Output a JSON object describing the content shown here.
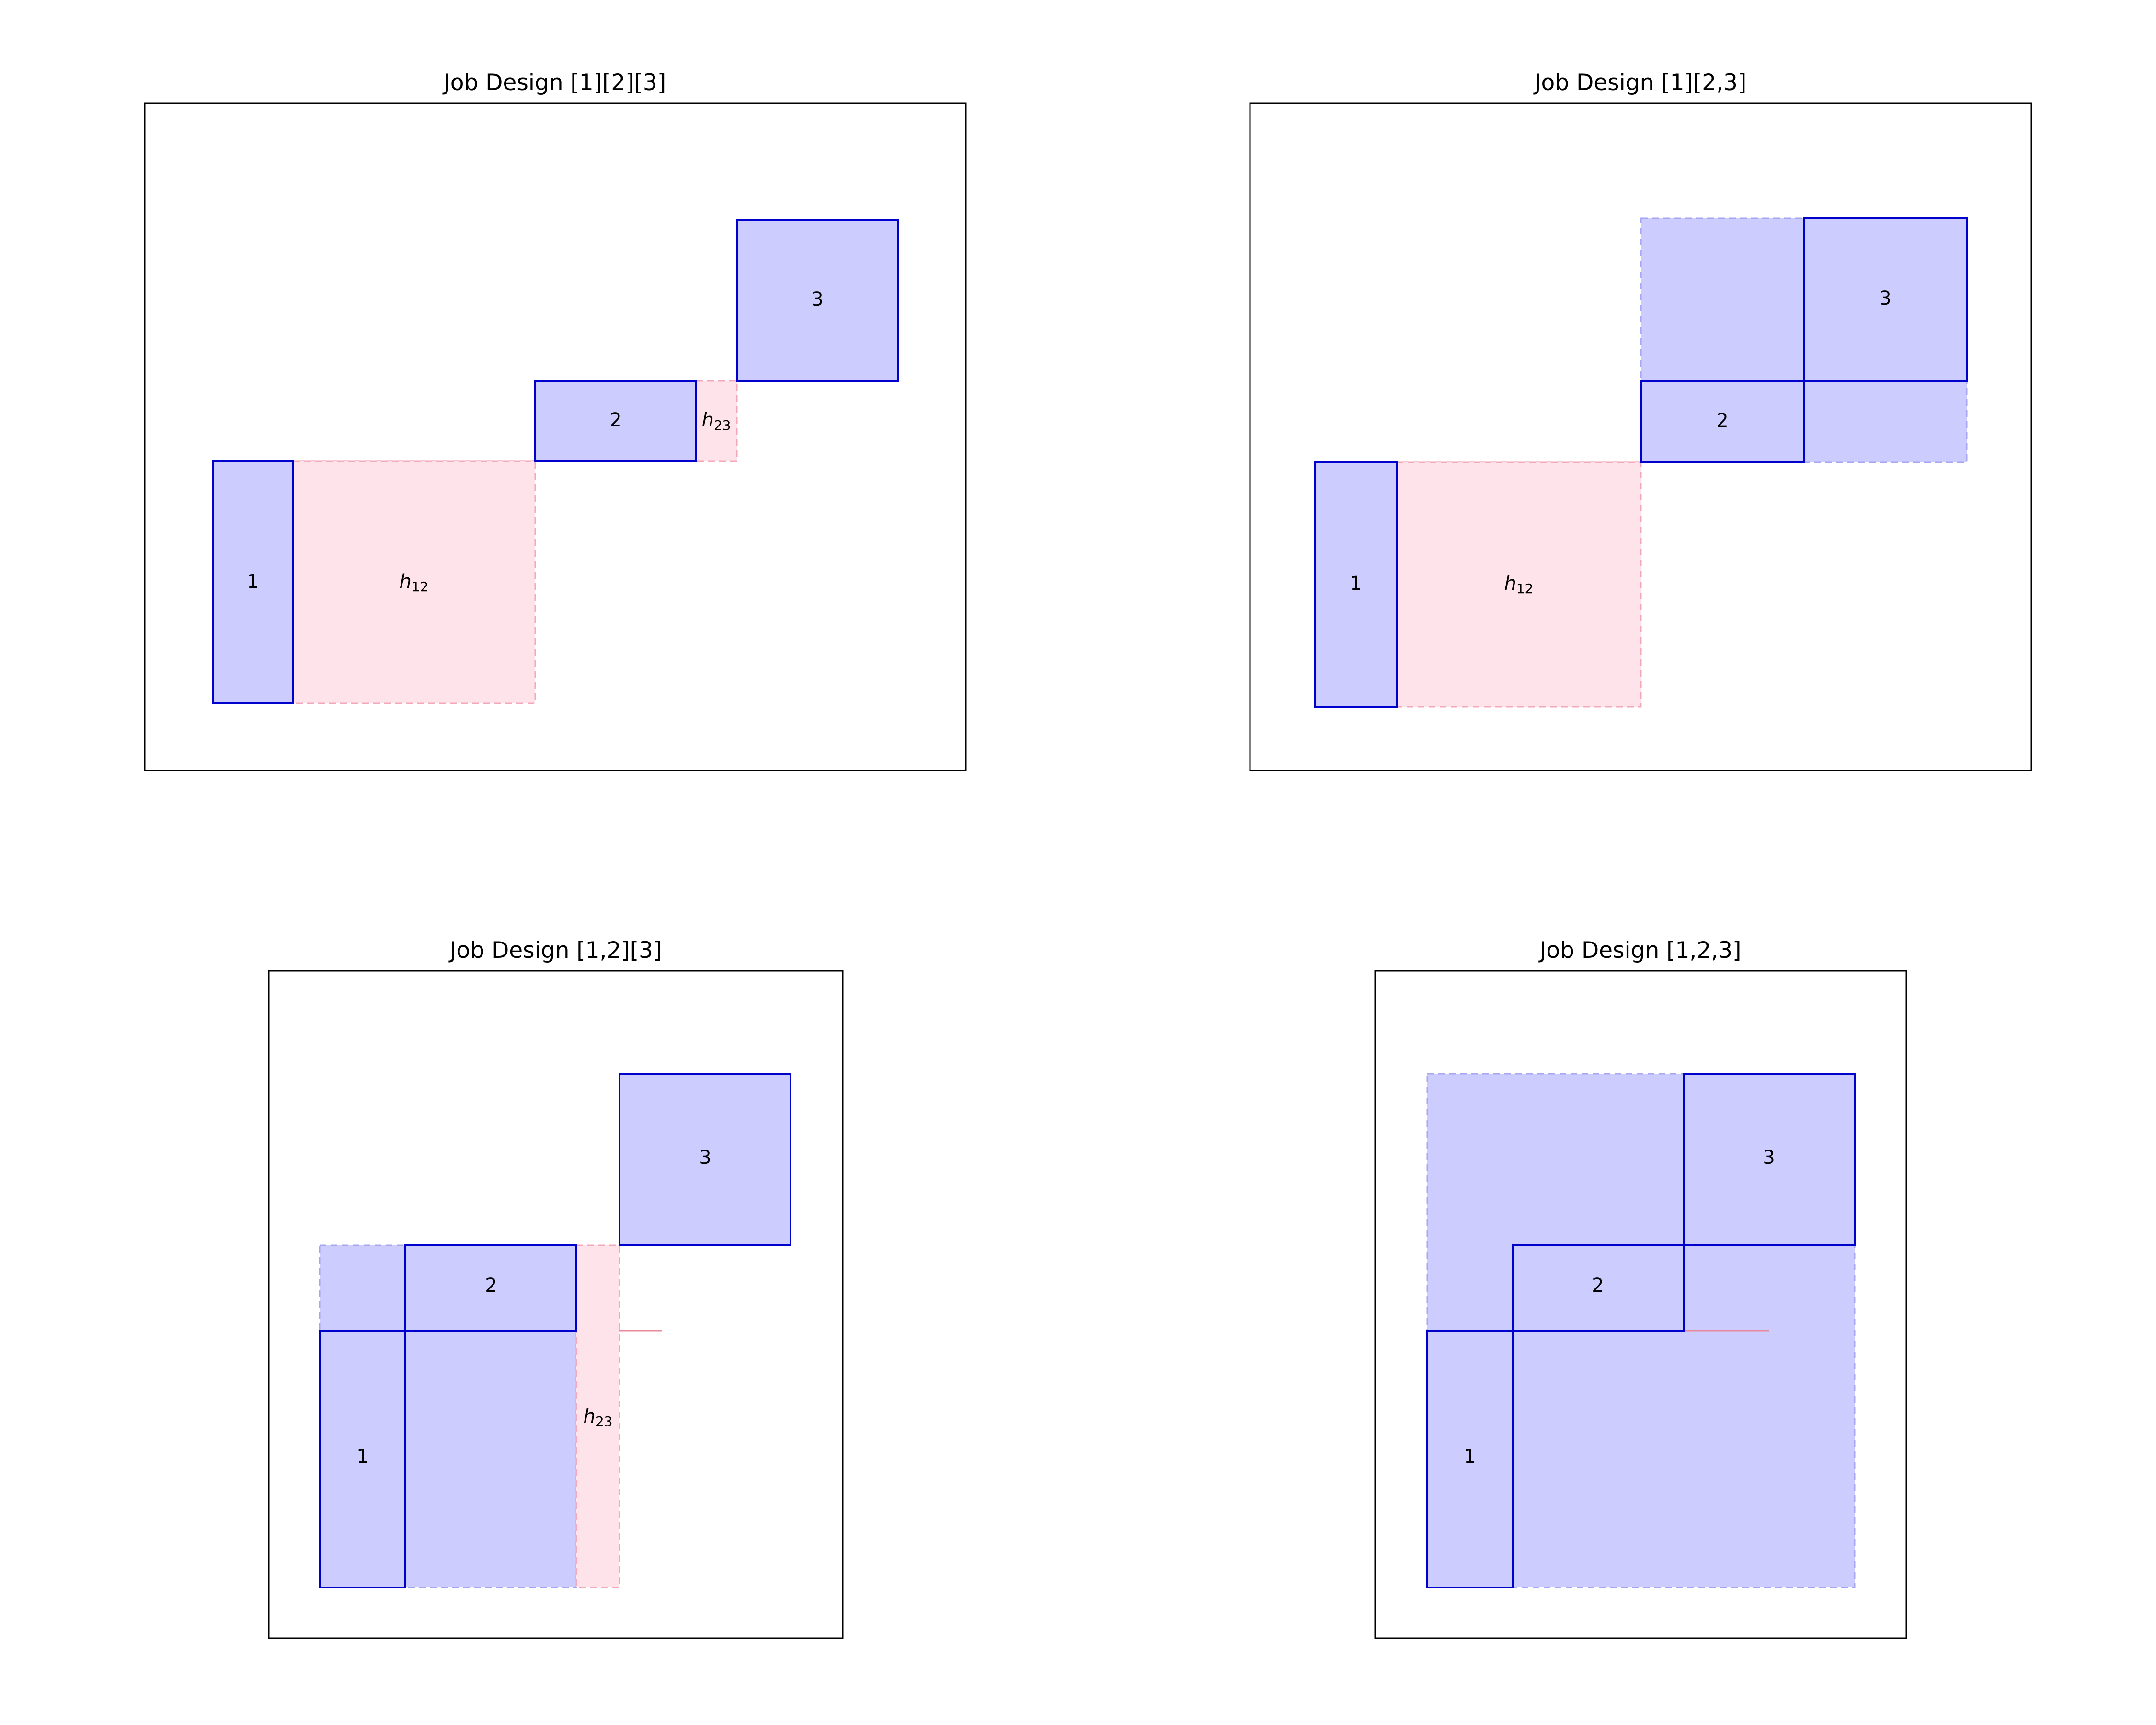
{
  "panels": [
    {
      "title": "Job Design [1][2][3]",
      "jobs": [
        {
          "label": "1"
        },
        {
          "label": "2"
        },
        {
          "label": "3"
        }
      ],
      "handoffs": [
        {
          "letter": "h",
          "subscript": "12"
        },
        {
          "letter": "h",
          "subscript": "23"
        }
      ]
    },
    {
      "title": "Job Design [1][2,3]",
      "jobs": [
        {
          "label": "1"
        },
        {
          "label": "2"
        },
        {
          "label": "3"
        }
      ],
      "handoffs": [
        {
          "letter": "h",
          "subscript": "12"
        }
      ]
    },
    {
      "title": "Job Design [1,2][3]",
      "jobs": [
        {
          "label": "1"
        },
        {
          "label": "2"
        },
        {
          "label": "3"
        }
      ],
      "handoffs": [
        {
          "letter": "h",
          "subscript": "23"
        }
      ]
    },
    {
      "title": "Job Design [1,2,3]",
      "jobs": [
        {
          "label": "1"
        },
        {
          "label": "2"
        },
        {
          "label": "3"
        }
      ],
      "handoffs": []
    }
  ],
  "colors": {
    "job_fill": "#ccccff",
    "job_edge": "#0000cc",
    "handoff_fill": "#ffe3ea",
    "handoff_edge": "#f3a9b9"
  }
}
